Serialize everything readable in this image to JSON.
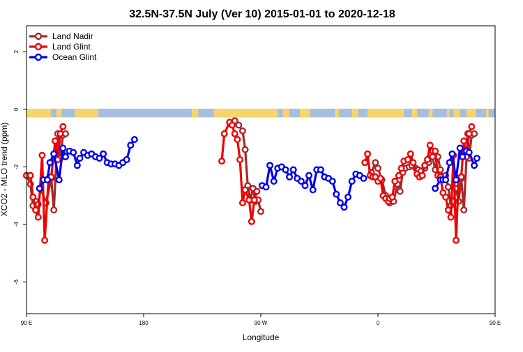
{
  "chart_data": {
    "type": "line",
    "title": "32.5N-37.5N July (Ver 10)   2015-01-01 to 2020-12-18",
    "xlabel": "Longitude",
    "ylabel": "XCO2 - MLO trend (ppm)",
    "xlim": [
      90,
      450
    ],
    "ylim": [
      -7.1,
      2.9
    ],
    "x_ticks": [
      {
        "value": 90,
        "label": "90 E"
      },
      {
        "value": 180,
        "label": "180"
      },
      {
        "value": 270,
        "label": "90 W"
      },
      {
        "value": 360,
        "label": "0"
      },
      {
        "value": 450,
        "label": "90 E"
      }
    ],
    "y_ticks": [
      {
        "value": 2,
        "label": "2"
      },
      {
        "value": 0,
        "label": "0"
      },
      {
        "value": -2,
        "label": "-2"
      },
      {
        "value": -4,
        "label": "-4"
      },
      {
        "value": -6,
        "label": "-6"
      }
    ],
    "grid": false,
    "legend_position": "top-left",
    "land_ocean_strip": {
      "y_range": [
        -0.28,
        0.02
      ],
      "land_color": "#f7d46e",
      "ocean_color": "#a6bedf",
      "land_segments": [
        [
          90,
          109
        ],
        [
          113,
          117
        ],
        [
          127,
          145
        ],
        [
          217,
          222
        ],
        [
          234,
          283
        ],
        [
          287,
          292
        ],
        [
          300,
          308
        ],
        [
          327,
          330
        ],
        [
          340,
          345
        ],
        [
          352,
          380
        ],
        [
          386,
          390
        ],
        [
          399,
          402
        ],
        [
          413,
          415
        ],
        [
          418,
          423
        ],
        [
          428,
          435
        ],
        [
          443,
          445
        ]
      ]
    },
    "series": [
      {
        "name": "Land Nadir",
        "color": "#a52a2a",
        "segments": [
          [
            [
              90,
              -2.3
            ],
            [
              93,
              -2.6
            ],
            [
              95,
              -3.35
            ],
            [
              97,
              -3.2
            ],
            [
              99,
              -3.3
            ],
            [
              101,
              -2.75
            ],
            [
              105,
              -3.25
            ],
            [
              109,
              -2.4
            ],
            [
              111,
              -3.5
            ],
            [
              114,
              -0.85
            ],
            [
              116,
              -1.7
            ],
            [
              118,
              -0.9
            ],
            [
              120,
              -0.85
            ]
          ],
          [
            [
              250,
              -0.4
            ],
            [
              253,
              -0.55
            ],
            [
              256,
              -0.75
            ],
            [
              258,
              -1.4
            ],
            [
              260,
              -2.65
            ],
            [
              262,
              -3.15
            ],
            [
              264,
              -2.75
            ],
            [
              266,
              -3.2
            ],
            [
              268,
              -3.15
            ],
            [
              270,
              -3.55
            ]
          ],
          [
            [
              355,
              -2.2
            ],
            [
              358,
              -1.85
            ],
            [
              360,
              -2.05
            ],
            [
              363,
              -2.45
            ],
            [
              366,
              -3.0
            ],
            [
              369,
              -3.25
            ],
            [
              372,
              -3.2
            ],
            [
              375,
              -2.6
            ],
            [
              377,
              -2.85
            ],
            [
              379,
              -2.2
            ],
            [
              381,
              -2.05
            ],
            [
              384,
              -2.0
            ],
            [
              386,
              -1.95
            ],
            [
              389,
              -2.05
            ],
            [
              391,
              -2.1
            ],
            [
              393,
              -2.15
            ],
            [
              396,
              -2.05
            ],
            [
              399,
              -1.85
            ],
            [
              402,
              -1.65
            ],
            [
              404,
              -2.1
            ],
            [
              406,
              -1.65
            ],
            [
              408,
              -2.1
            ],
            [
              410,
              -2.35
            ],
            [
              412,
              -2.3
            ],
            [
              414,
              -2.7
            ],
            [
              416,
              -3.35
            ],
            [
              418,
              -3.2
            ],
            [
              420,
              -2.75
            ],
            [
              422,
              -3.2
            ],
            [
              424,
              -2.4
            ],
            [
              426,
              -3.5
            ],
            [
              429,
              -0.85
            ],
            [
              430,
              -1.7
            ],
            [
              432,
              -0.9
            ],
            [
              434,
              -0.85
            ]
          ]
        ]
      },
      {
        "name": "Land Glint",
        "color": "#ee0000",
        "segments": [
          [
            [
              90,
              -2.3
            ],
            [
              93,
              -2.3
            ],
            [
              95,
              -3.05
            ],
            [
              97,
              -3.5
            ],
            [
              99,
              -3.75
            ],
            [
              102,
              -1.6
            ],
            [
              104,
              -4.55
            ],
            [
              107,
              -2.4
            ],
            [
              109,
              -2.35
            ],
            [
              112,
              -1.1
            ],
            [
              114,
              -1.75
            ],
            [
              116,
              -0.85
            ],
            [
              118,
              -0.6
            ]
          ],
          [
            [
              240,
              -1.8
            ],
            [
              242,
              -0.85
            ],
            [
              246,
              -0.45
            ],
            [
              248,
              -0.55
            ],
            [
              250,
              -0.85
            ],
            [
              252,
              -1.05
            ],
            [
              254,
              -1.75
            ],
            [
              256,
              -3.25
            ],
            [
              258,
              -2.8
            ],
            [
              261,
              -3.15
            ],
            [
              263,
              -3.9
            ],
            [
              265,
              -3.15
            ],
            [
              267,
              -2.85
            ]
          ],
          [
            [
              350,
              -1.85
            ],
            [
              352,
              -1.55
            ],
            [
              354,
              -2.3
            ],
            [
              356,
              -2.35
            ],
            [
              358,
              -2.35
            ],
            [
              360,
              -2.5
            ],
            [
              362,
              -2.4
            ],
            [
              364,
              -3.0
            ],
            [
              366,
              -3.1
            ],
            [
              368,
              -3.2
            ],
            [
              369,
              -3.1
            ],
            [
              371,
              -3.05
            ],
            [
              373,
              -2.5
            ],
            [
              376,
              -2.3
            ],
            [
              378,
              -2.05
            ],
            [
              380,
              -1.8
            ],
            [
              383,
              -1.75
            ],
            [
              385,
              -1.55
            ],
            [
              387,
              -1.85
            ],
            [
              390,
              -2.25
            ],
            [
              392,
              -2.35
            ],
            [
              394,
              -2.3
            ],
            [
              396,
              -1.95
            ],
            [
              398,
              -1.75
            ],
            [
              400,
              -1.25
            ],
            [
              402,
              -1.45
            ],
            [
              404,
              -1.45
            ],
            [
              406,
              -2.3
            ],
            [
              408,
              -2.35
            ],
            [
              410,
              -2.9
            ],
            [
              412,
              -3.05
            ],
            [
              414,
              -3.5
            ],
            [
              416,
              -3.75
            ],
            [
              418,
              -1.6
            ],
            [
              420,
              -4.55
            ],
            [
              422,
              -2.4
            ],
            [
              424,
              -2.35
            ],
            [
              426,
              -1.1
            ],
            [
              428,
              -1.65
            ],
            [
              430,
              -0.85
            ],
            [
              432,
              -0.6
            ]
          ]
        ]
      },
      {
        "name": "Ocean Glint",
        "color": "#0000ee",
        "segments": [
          [
            [
              100,
              -2.75
            ],
            [
              103,
              -2.45
            ],
            [
              106,
              -2.45
            ],
            [
              108,
              -1.85
            ],
            [
              111,
              -1.55
            ],
            [
              115,
              -2.45
            ],
            [
              118,
              -1.35
            ],
            [
              120,
              -1.65
            ],
            [
              123,
              -1.45
            ],
            [
              126,
              -1.5
            ],
            [
              129,
              -1.95
            ],
            [
              131,
              -1.7
            ],
            [
              134,
              -1.5
            ],
            [
              137,
              -1.6
            ],
            [
              140,
              -1.55
            ],
            [
              143,
              -1.65
            ],
            [
              146,
              -1.7
            ],
            [
              149,
              -1.55
            ],
            [
              152,
              -1.85
            ],
            [
              155,
              -1.9
            ],
            [
              158,
              -1.9
            ],
            [
              161,
              -1.95
            ],
            [
              164,
              -1.85
            ],
            [
              167,
              -1.75
            ],
            [
              170,
              -1.25
            ],
            [
              173,
              -1.05
            ]
          ],
          [
            [
              271,
              -2.65
            ],
            [
              274,
              -2.7
            ],
            [
              277,
              -1.95
            ],
            [
              280,
              -2.5
            ],
            [
              283,
              -2.05
            ],
            [
              286,
              -2.0
            ],
            [
              289,
              -2.1
            ],
            [
              292,
              -2.35
            ],
            [
              295,
              -2.1
            ],
            [
              298,
              -2.4
            ],
            [
              301,
              -2.5
            ],
            [
              304,
              -2.65
            ],
            [
              307,
              -2.3
            ],
            [
              310,
              -2.8
            ],
            [
              313,
              -2.1
            ],
            [
              316,
              -2.1
            ],
            [
              319,
              -2.35
            ],
            [
              322,
              -2.4
            ],
            [
              325,
              -2.5
            ],
            [
              328,
              -2.95
            ],
            [
              331,
              -3.25
            ],
            [
              334,
              -3.4
            ],
            [
              337,
              -3.05
            ],
            [
              340,
              -2.5
            ],
            [
              343,
              -2.25
            ],
            [
              346,
              -2.3
            ],
            [
              349,
              -2.4
            ]
          ],
          [
            [
              404,
              -2.75
            ],
            [
              408,
              -2.45
            ],
            [
              410,
              -2.45
            ],
            [
              412,
              -2.45
            ],
            [
              415,
              -1.85
            ],
            [
              417,
              -1.55
            ],
            [
              420,
              -2.45
            ],
            [
              423,
              -1.35
            ],
            [
              425,
              -1.65
            ],
            [
              428,
              -1.45
            ],
            [
              430,
              -1.5
            ],
            [
              434,
              -1.95
            ],
            [
              436,
              -1.7
            ]
          ]
        ]
      }
    ]
  }
}
